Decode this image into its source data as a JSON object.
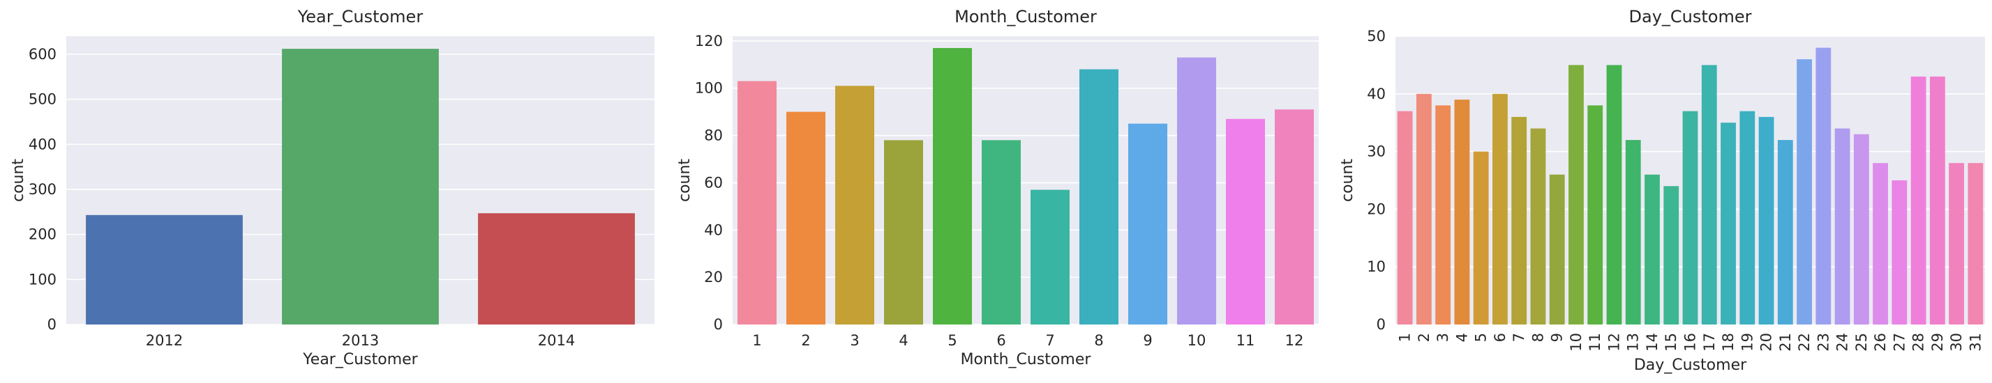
{
  "chart_data": [
    {
      "type": "bar",
      "title": "Year_Customer",
      "xlabel": "Year_Customer",
      "ylabel": "count",
      "categories": [
        "2012",
        "2013",
        "2014"
      ],
      "values": [
        243,
        612,
        247
      ],
      "ylim": [
        0,
        640
      ],
      "yticks": [
        0,
        100,
        200,
        300,
        400,
        500,
        600
      ],
      "colors": [
        "#4C72B0",
        "#55A868",
        "#C44E52"
      ],
      "grid": true
    },
    {
      "type": "bar",
      "title": "Month_Customer",
      "xlabel": "Month_Customer",
      "ylabel": "count",
      "categories": [
        "1",
        "2",
        "3",
        "4",
        "5",
        "6",
        "7",
        "8",
        "9",
        "10",
        "11",
        "12"
      ],
      "values": [
        103,
        90,
        101,
        78,
        117,
        78,
        57,
        108,
        85,
        113,
        87,
        91
      ],
      "ylim": [
        0,
        122
      ],
      "yticks": [
        0,
        20,
        40,
        60,
        80,
        100,
        120
      ],
      "colors": [
        "#F2889C",
        "#EE8A3E",
        "#C4A035",
        "#9AA43B",
        "#4FB33F",
        "#3FB67F",
        "#39B5A3",
        "#3AAFBE",
        "#5EA9E8",
        "#B09BEF",
        "#EF7FEA",
        "#F083BE"
      ],
      "grid": true
    },
    {
      "type": "bar",
      "title": "Day_Customer",
      "xlabel": "Day_Customer",
      "ylabel": "count",
      "categories": [
        "1",
        "2",
        "3",
        "4",
        "5",
        "6",
        "7",
        "8",
        "9",
        "10",
        "11",
        "12",
        "13",
        "14",
        "15",
        "16",
        "17",
        "18",
        "19",
        "20",
        "21",
        "22",
        "23",
        "24",
        "25",
        "26",
        "27",
        "28",
        "29",
        "30",
        "31"
      ],
      "values": [
        37,
        40,
        38,
        39,
        30,
        40,
        36,
        34,
        26,
        45,
        38,
        45,
        32,
        26,
        24,
        37,
        45,
        35,
        37,
        36,
        32,
        46,
        48,
        34,
        33,
        28,
        25,
        43,
        43,
        28,
        28
      ],
      "ylim": [
        0,
        50
      ],
      "yticks": [
        0,
        10,
        20,
        30,
        40,
        50
      ],
      "colors": [
        "#F2889C",
        "#F08C7A",
        "#EE8A55",
        "#E08A3A",
        "#D19A35",
        "#C4A035",
        "#B3A236",
        "#A4A53A",
        "#94A73C",
        "#7EAF3C",
        "#5BB33F",
        "#45B350",
        "#3FB56B",
        "#3EB681",
        "#3DB692",
        "#3BB5A2",
        "#3AB4AD",
        "#3AB2B7",
        "#3AB0C0",
        "#3DADCA",
        "#4AAAD8",
        "#7CA6EB",
        "#9AA0F0",
        "#AE9CF0",
        "#C796EE",
        "#DC8CEB",
        "#EA84E6",
        "#EF7FDA",
        "#F07FCB",
        "#F082BE",
        "#F186AF"
      ],
      "grid": true
    }
  ]
}
